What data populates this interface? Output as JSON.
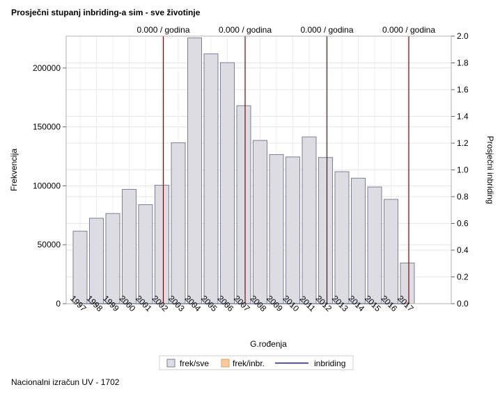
{
  "title": "Prosječni stupanj inbriding-a sim - sve životinje",
  "footer": "Nacionalni izračun UV - 1702",
  "chart_data": {
    "type": "bar",
    "categories": [
      "1997",
      "1998",
      "1999",
      "2000",
      "2001",
      "2002",
      "2003",
      "2004",
      "2005",
      "2006",
      "2007",
      "2008",
      "2009",
      "2010",
      "2011",
      "2012",
      "2013",
      "2014",
      "2015",
      "2016",
      "2017"
    ],
    "series": [
      {
        "name": "frek/sve",
        "type": "bar",
        "color": "#dcdce2",
        "values": [
          61500,
          72500,
          76500,
          97000,
          84000,
          100500,
          136500,
          225500,
          212000,
          204500,
          168000,
          138500,
          126500,
          124500,
          141500,
          124000,
          112000,
          106500,
          99000,
          88500,
          34500
        ]
      },
      {
        "name": "frek/inbr.",
        "type": "bar",
        "color": "#f8c99a",
        "values": [
          0,
          0,
          0,
          0,
          0,
          0,
          0,
          0,
          0,
          0,
          0,
          0,
          0,
          0,
          0,
          0,
          0,
          0,
          0,
          0,
          0
        ]
      },
      {
        "name": "inbriding",
        "type": "line",
        "color": "#1a1a6e",
        "values": [
          0,
          0,
          0,
          0,
          0,
          0,
          0,
          0,
          0,
          0,
          0,
          0,
          0,
          0,
          0,
          0,
          0,
          0,
          0,
          0,
          0
        ]
      }
    ],
    "xlabel": "G.rođenja",
    "ylabel": "Frekvencija",
    "y2label": "Prosječni inbriding",
    "ylim": [
      0,
      227000
    ],
    "y2lim": [
      0,
      2.0
    ],
    "yticks": [
      0,
      50000,
      100000,
      150000,
      200000
    ],
    "y2ticks": [
      "0.0",
      "0.2",
      "0.4",
      "0.6",
      "0.8",
      "1.0",
      "1.2",
      "1.4",
      "1.6",
      "1.8",
      "2.0"
    ],
    "reference_lines": [
      {
        "x": "2002",
        "label": "0.000 / godina"
      },
      {
        "x": "2007",
        "label": "0.000 / godina"
      },
      {
        "x": "2012",
        "label": "0.000 / godina"
      },
      {
        "x": "2017",
        "label": "0.000 / godina"
      }
    ],
    "reference_line_color": "#6b0a0a",
    "grid": true,
    "legend": "bottom-center"
  }
}
